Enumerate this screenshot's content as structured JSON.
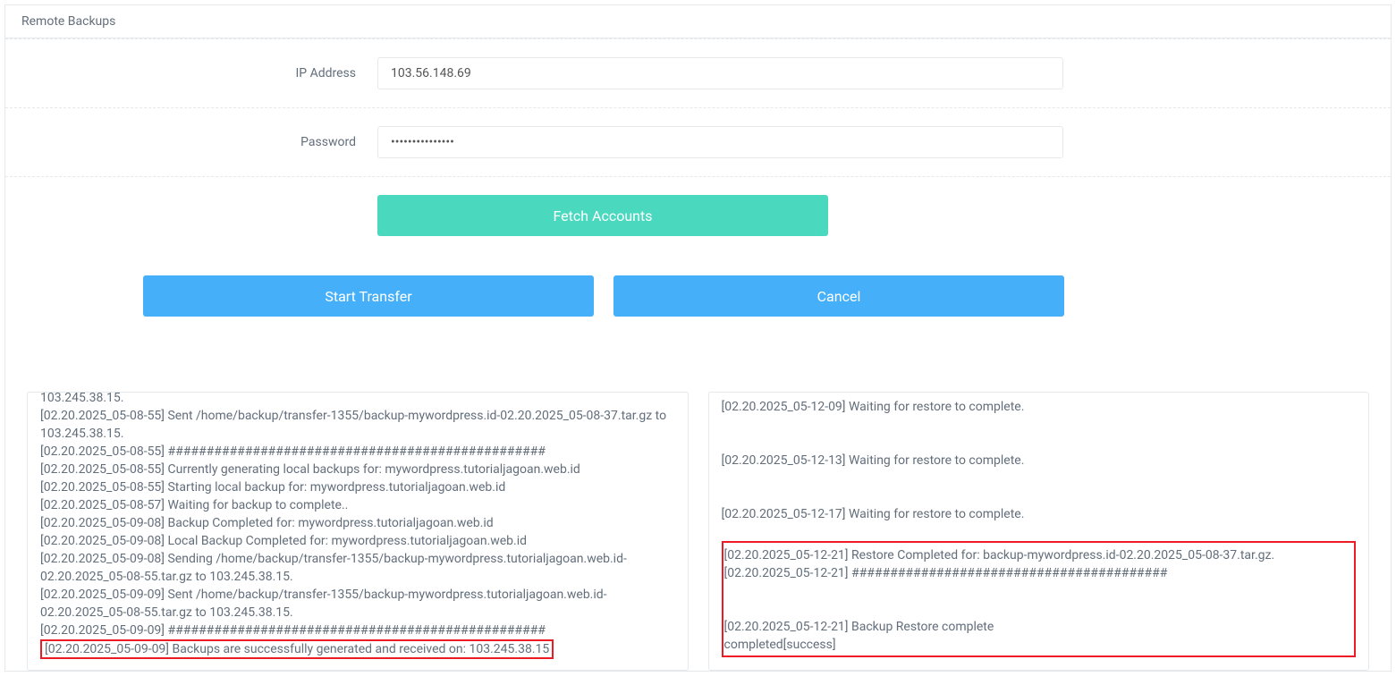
{
  "panel": {
    "title": "Remote Backups"
  },
  "form": {
    "ip": {
      "label": "IP Address",
      "value": "103.56.148.69"
    },
    "password": {
      "label": "Password",
      "value": "•••••••••••••••"
    }
  },
  "buttons": {
    "fetch": "Fetch Accounts",
    "start": "Start Transfer",
    "cancel": "Cancel"
  },
  "log_left": {
    "lines": [
      "103.245.38.15.",
      "[02.20.2025_05-08-55] Sent /home/backup/transfer-1355/backup-mywordpress.id-02.20.2025_05-08-37.tar.gz to 103.245.38.15.",
      "[02.20.2025_05-08-55] #################################################",
      "[02.20.2025_05-08-55] Currently generating local backups for: mywordpress.tutorialjagoan.web.id",
      "[02.20.2025_05-08-55] Starting local backup for: mywordpress.tutorialjagoan.web.id",
      "[02.20.2025_05-08-57] Waiting for backup to complete..",
      "[02.20.2025_05-09-08] Backup Completed for: mywordpress.tutorialjagoan.web.id",
      "[02.20.2025_05-09-08] Local Backup Completed for: mywordpress.tutorialjagoan.web.id",
      "[02.20.2025_05-09-08] Sending /home/backup/transfer-1355/backup-mywordpress.tutorialjagoan.web.id-02.20.2025_05-08-55.tar.gz to 103.245.38.15.",
      "[02.20.2025_05-09-09] Sent /home/backup/transfer-1355/backup-mywordpress.tutorialjagoan.web.id-02.20.2025_05-08-55.tar.gz to 103.245.38.15.",
      "[02.20.2025_05-09-09] #################################################"
    ],
    "highlighted": "[02.20.2025_05-09-09] Backups are successfully generated and received on: 103.245.38.15"
  },
  "log_right": {
    "lines": [
      "[02.20.2025_05-12-09] Waiting for restore to complete.",
      "",
      "",
      "[02.20.2025_05-12-13] Waiting for restore to complete.",
      "",
      "",
      "[02.20.2025_05-12-17] Waiting for restore to complete.",
      ""
    ],
    "highlighted_lines": [
      "[02.20.2025_05-12-21] Restore Completed for: backup-mywordpress.id-02.20.2025_05-08-37.tar.gz.",
      "[02.20.2025_05-12-21] #########################################",
      "",
      "",
      "[02.20.2025_05-12-21] Backup Restore complete",
      "completed[success]"
    ]
  },
  "colors": {
    "teal": "#4ad8bf",
    "blue": "#45b0f9",
    "border": "#e5e9ec",
    "text": "#636e7b",
    "highlight": "#ed1c24",
    "background": "#ffffff"
  }
}
